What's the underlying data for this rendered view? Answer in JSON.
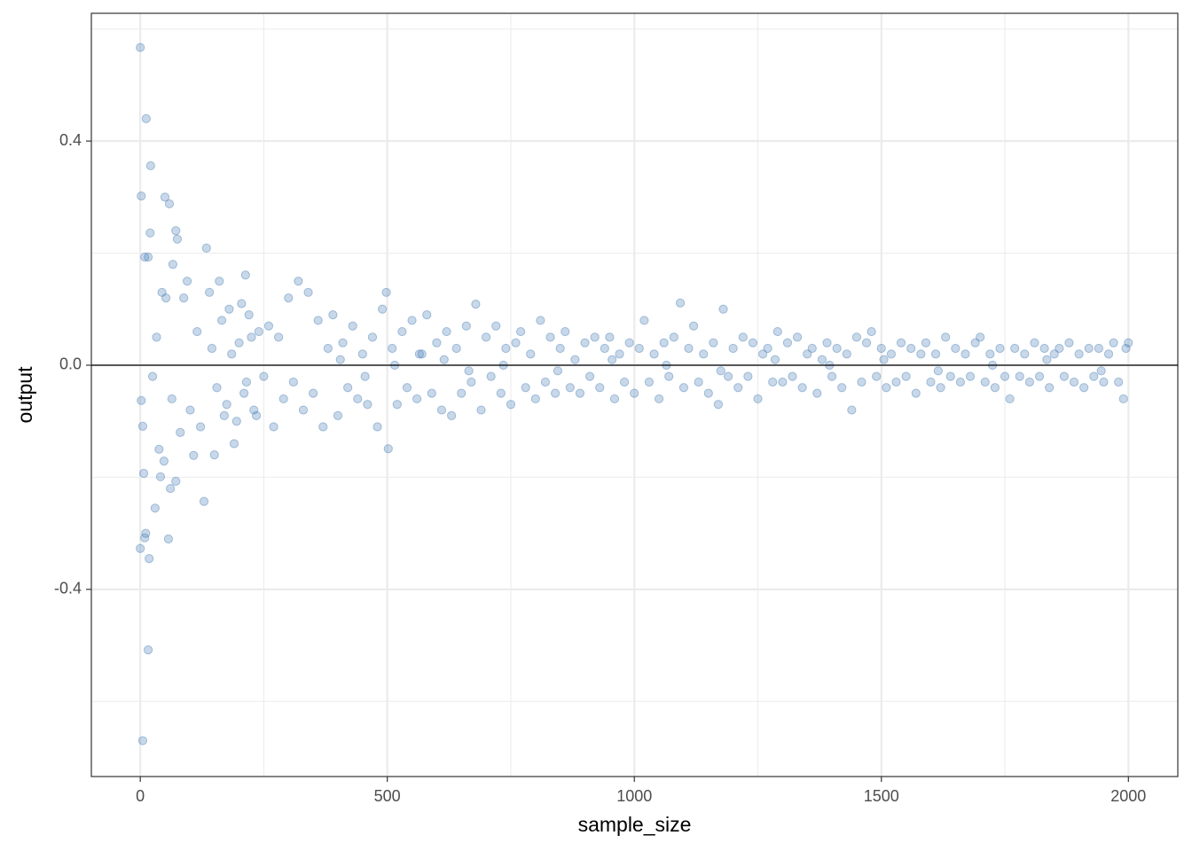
{
  "chart_data": {
    "type": "scatter",
    "x_label": "sample_size",
    "y_label": "output",
    "color": "#4a7fb5",
    "xlim": [
      -99,
      2100
    ],
    "ylim": [
      -0.734,
      0.628
    ],
    "xticks": [
      0,
      500,
      1000,
      1500,
      2000
    ],
    "yticks": [
      -0.4,
      {
        "value": 0,
        "label": "0.0"
      },
      0.4
    ],
    "x_minor_grid": [
      250,
      750,
      1250,
      1750
    ],
    "y_minor_grid": [
      -0.6,
      -0.2,
      0.2,
      0.6
    ],
    "grid": true,
    "hline": 0,
    "x": [
      0,
      12,
      21,
      2,
      9,
      16,
      20,
      2,
      5,
      7,
      11,
      9,
      0,
      18,
      16,
      5,
      30,
      50,
      59,
      72,
      75,
      57,
      61,
      129,
      41,
      48,
      72,
      108,
      134,
      213,
      498,
      502,
      1093,
      679,
      25,
      33,
      44,
      66,
      81,
      95,
      38,
      52,
      64,
      88,
      101,
      115,
      122,
      140,
      150,
      160,
      170,
      180,
      190,
      200,
      210,
      220,
      230,
      240,
      250,
      260,
      145,
      155,
      165,
      175,
      185,
      195,
      205,
      215,
      225,
      235,
      270,
      280,
      290,
      300,
      310,
      320,
      330,
      340,
      350,
      360,
      370,
      380,
      390,
      400,
      410,
      420,
      430,
      440,
      450,
      460,
      470,
      480,
      490,
      510,
      520,
      530,
      540,
      550,
      560,
      570,
      580,
      590,
      600,
      610,
      620,
      630,
      640,
      650,
      660,
      670,
      690,
      700,
      710,
      720,
      730,
      740,
      750,
      760,
      770,
      780,
      790,
      800,
      810,
      820,
      830,
      840,
      850,
      860,
      870,
      880,
      890,
      900,
      910,
      920,
      930,
      940,
      950,
      960,
      970,
      980,
      990,
      1000,
      1010,
      1020,
      1030,
      1040,
      1050,
      1060,
      1070,
      1080,
      1100,
      1110,
      1120,
      1130,
      1140,
      1150,
      1160,
      1170,
      1180,
      1190,
      1200,
      1210,
      1220,
      1230,
      1240,
      1250,
      1260,
      1270,
      1280,
      1290,
      1300,
      1310,
      1320,
      1330,
      1340,
      1350,
      1360,
      1370,
      1380,
      1390,
      1400,
      1410,
      1420,
      1430,
      1440,
      1450,
      1460,
      1470,
      1480,
      1490,
      1500,
      1510,
      1520,
      1530,
      1540,
      1550,
      1560,
      1570,
      1580,
      1590,
      1600,
      1610,
      1620,
      1630,
      1640,
      1650,
      1660,
      1670,
      1680,
      1690,
      1700,
      1710,
      1720,
      1730,
      1740,
      1750,
      1760,
      1770,
      1780,
      1790,
      1800,
      1810,
      1820,
      1830,
      1840,
      1850,
      1860,
      1870,
      1880,
      1890,
      1900,
      1910,
      1920,
      1930,
      1940,
      1950,
      1960,
      1970,
      1980,
      1990,
      1995,
      2000,
      615,
      735,
      845,
      955,
      1065,
      1175,
      1285,
      1395,
      1505,
      1615,
      1725,
      1835,
      1945,
      405,
      455,
      515,
      565,
      665
    ],
    "y": [
      0.567,
      0.44,
      0.356,
      0.302,
      0.193,
      0.193,
      0.236,
      -0.063,
      -0.109,
      -0.193,
      -0.3,
      -0.308,
      -0.327,
      -0.345,
      -0.508,
      -0.67,
      -0.255,
      0.3,
      0.288,
      0.24,
      0.225,
      -0.31,
      -0.22,
      -0.243,
      -0.199,
      -0.171,
      -0.207,
      -0.161,
      0.209,
      0.161,
      0.13,
      -0.149,
      0.111,
      0.109,
      -0.02,
      0.05,
      0.13,
      0.18,
      -0.12,
      0.15,
      -0.15,
      0.12,
      -0.06,
      0.12,
      -0.08,
      0.06,
      -0.11,
      0.13,
      -0.16,
      0.15,
      -0.09,
      0.1,
      -0.14,
      0.04,
      -0.05,
      0.09,
      -0.08,
      0.06,
      -0.02,
      0.07,
      0.03,
      -0.04,
      0.08,
      -0.07,
      0.02,
      -0.1,
      0.11,
      -0.03,
      0.05,
      -0.09,
      -0.11,
      0.05,
      -0.06,
      0.12,
      -0.03,
      0.15,
      -0.08,
      0.13,
      -0.05,
      0.08,
      -0.11,
      0.03,
      0.09,
      -0.09,
      0.04,
      -0.04,
      0.07,
      -0.06,
      0.02,
      -0.07,
      0.05,
      -0.11,
      0.1,
      0.03,
      -0.07,
      0.06,
      -0.04,
      0.08,
      -0.06,
      0.02,
      0.09,
      -0.05,
      0.04,
      -0.08,
      0.06,
      -0.09,
      0.03,
      -0.05,
      0.07,
      -0.03,
      -0.08,
      0.05,
      -0.02,
      0.07,
      -0.05,
      0.03,
      -0.07,
      0.04,
      0.06,
      -0.04,
      0.02,
      -0.06,
      0.08,
      -0.03,
      0.05,
      -0.05,
      0.03,
      0.06,
      -0.04,
      0.01,
      -0.05,
      0.04,
      -0.02,
      0.05,
      -0.04,
      0.03,
      0.05,
      -0.06,
      0.02,
      -0.03,
      0.04,
      -0.05,
      0.03,
      0.08,
      -0.03,
      0.02,
      -0.06,
      0.04,
      -0.02,
      0.05,
      -0.04,
      0.03,
      0.07,
      -0.03,
      0.02,
      -0.05,
      0.04,
      -0.07,
      0.1,
      -0.02,
      0.03,
      -0.04,
      0.05,
      -0.02,
      0.04,
      -0.06,
      0.02,
      0.03,
      -0.03,
      0.06,
      -0.03,
      0.04,
      -0.02,
      0.05,
      -0.04,
      0.02,
      0.03,
      -0.05,
      0.01,
      0.04,
      -0.02,
      0.03,
      -0.04,
      0.02,
      -0.08,
      0.05,
      -0.03,
      0.04,
      0.06,
      -0.02,
      0.03,
      -0.04,
      0.02,
      -0.03,
      0.04,
      -0.02,
      0.03,
      -0.05,
      0.02,
      0.04,
      -0.03,
      0.02,
      -0.04,
      0.05,
      -0.02,
      0.03,
      -0.03,
      0.02,
      -0.02,
      0.04,
      0.05,
      -0.03,
      0.02,
      -0.04,
      0.03,
      -0.02,
      -0.06,
      0.03,
      -0.02,
      0.02,
      -0.03,
      0.04,
      -0.02,
      0.03,
      -0.04,
      0.02,
      0.03,
      -0.02,
      0.04,
      -0.03,
      0.02,
      -0.04,
      0.03,
      -0.02,
      0.03,
      -0.03,
      0.02,
      0.04,
      -0.03,
      -0.06,
      0.03,
      0.04,
      0.01,
      0,
      -0.01,
      0.01,
      0,
      -0.01,
      0.01,
      0,
      0.01,
      -0.01,
      0,
      0.01,
      -0.01,
      0.01,
      -0.02,
      0,
      0.02,
      -0.01
    ]
  }
}
